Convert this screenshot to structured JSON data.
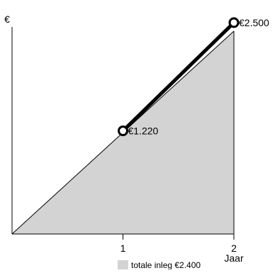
{
  "chart_data": {
    "type": "area",
    "ylabel": "€",
    "xlabel": "Jaar",
    "x_ticks": [
      "1",
      "2"
    ],
    "xlim": [
      0,
      2
    ],
    "ylim": [
      0,
      2600
    ],
    "grid": false,
    "legend_position": "bottom",
    "series": [
      {
        "name": "totale inleg €2.400",
        "kind": "area",
        "x": [
          0,
          1,
          2
        ],
        "y": [
          0,
          1200,
          2400
        ],
        "fill": "#d3d3d3"
      },
      {
        "kind": "line",
        "x": [
          1,
          2
        ],
        "y": [
          1220,
          2500
        ],
        "color": "#000000"
      }
    ],
    "point_labels": [
      {
        "x": 1,
        "y": 1220,
        "label": "€1.220"
      },
      {
        "x": 2,
        "y": 2500,
        "label": "€2.500"
      }
    ],
    "legend": [
      {
        "label": "totale inleg €2.400",
        "color": "#d3d3d3"
      }
    ]
  }
}
